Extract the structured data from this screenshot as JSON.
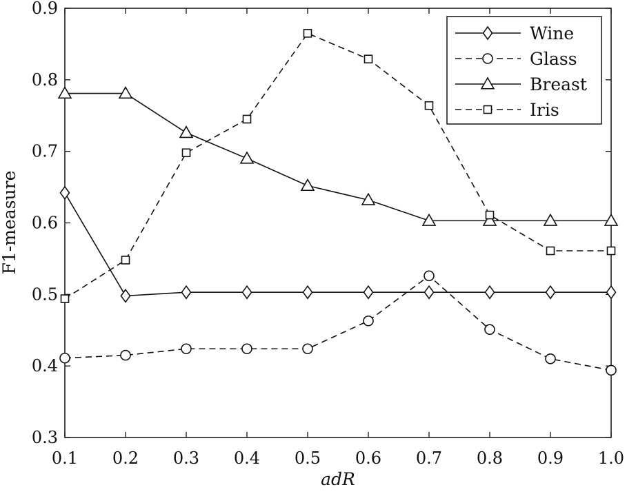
{
  "chart_data": {
    "type": "line",
    "title": "",
    "xlabel": "adR",
    "ylabel": "F1-measure",
    "xlim": [
      0.1,
      1.0
    ],
    "ylim": [
      0.3,
      0.9
    ],
    "x": [
      0.1,
      0.2,
      0.3,
      0.4,
      0.5,
      0.6,
      0.7,
      0.8,
      0.9,
      1.0
    ],
    "xticks": [
      "0.1",
      "0.2",
      "0.3",
      "0.4",
      "0.5",
      "0.6",
      "0.7",
      "0.8",
      "0.9",
      "1.0"
    ],
    "yticks": [
      "0.3",
      "0.4",
      "0.5",
      "0.6",
      "0.7",
      "0.8",
      "0.9"
    ],
    "grid": false,
    "legend_position": "top-right",
    "series": [
      {
        "name": "Wine",
        "marker": "diamond",
        "line_style": "solid",
        "values": [
          0.642,
          0.498,
          0.503,
          0.503,
          0.503,
          0.503,
          0.503,
          0.503,
          0.503,
          0.503
        ]
      },
      {
        "name": "Glass",
        "marker": "circle",
        "line_style": "dashed",
        "values": [
          0.411,
          0.415,
          0.424,
          0.424,
          0.424,
          0.463,
          0.526,
          0.451,
          0.41,
          0.394
        ]
      },
      {
        "name": "Breast",
        "marker": "triangle",
        "line_style": "solid",
        "values": [
          0.781,
          0.781,
          0.726,
          0.69,
          0.652,
          0.632,
          0.603,
          0.603,
          0.603,
          0.603
        ]
      },
      {
        "name": "Iris",
        "marker": "square",
        "line_style": "dashed",
        "values": [
          0.494,
          0.548,
          0.698,
          0.745,
          0.865,
          0.829,
          0.764,
          0.611,
          0.561,
          0.561
        ]
      }
    ]
  }
}
